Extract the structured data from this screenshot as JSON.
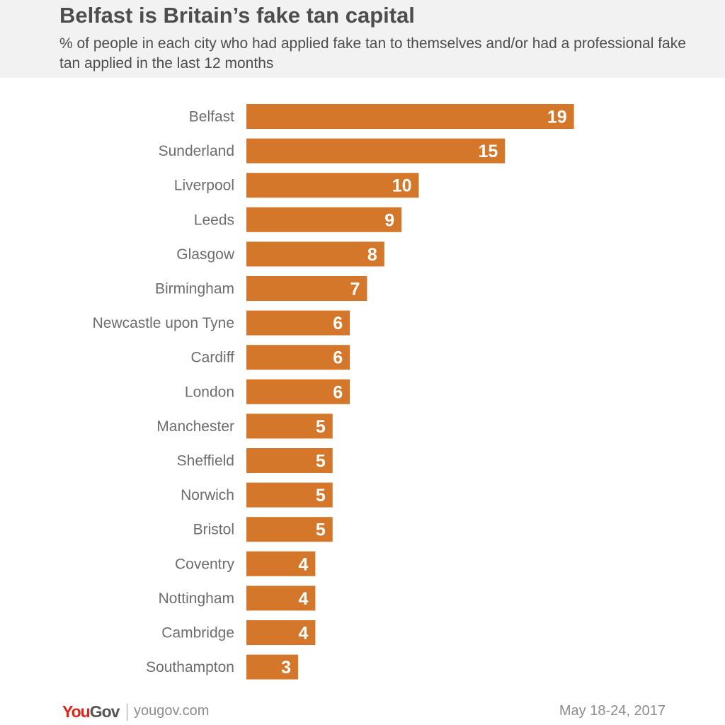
{
  "header": {
    "title": "Belfast is Britain’s fake tan capital",
    "subtitle": "% of people in each city who had applied fake tan to themselves and/or had a professional fake tan applied in the last 12 months"
  },
  "chart_data": {
    "type": "bar",
    "orientation": "horizontal",
    "title": "Belfast is Britain’s fake tan capital",
    "subtitle": "% of people in each city who had applied fake tan to themselves and/or had a professional fake tan applied in the last 12 months",
    "categories": [
      "Belfast",
      "Sunderland",
      "Liverpool",
      "Leeds",
      "Glasgow",
      "Birmingham",
      "Newcastle upon Tyne",
      "Cardiff",
      "London",
      "Manchester",
      "Sheffield",
      "Norwich",
      "Bristol",
      "Coventry",
      "Nottingham",
      "Cambridge",
      "Southampton"
    ],
    "values": [
      19,
      15,
      10,
      9,
      8,
      7,
      6,
      6,
      6,
      5,
      5,
      5,
      5,
      4,
      4,
      4,
      3
    ],
    "xlabel": "",
    "ylabel": "",
    "xlim": [
      0,
      20
    ],
    "grid": false,
    "legend": "none",
    "data_labels": "inside-end",
    "colors": {
      "bar": "#d4772b",
      "label": "#6d6d6d",
      "value": "#ffffff"
    }
  },
  "footer": {
    "logo_you": "You",
    "logo_gov": "Gov",
    "url": "yougov.com",
    "date": "May 18-24, 2017"
  }
}
